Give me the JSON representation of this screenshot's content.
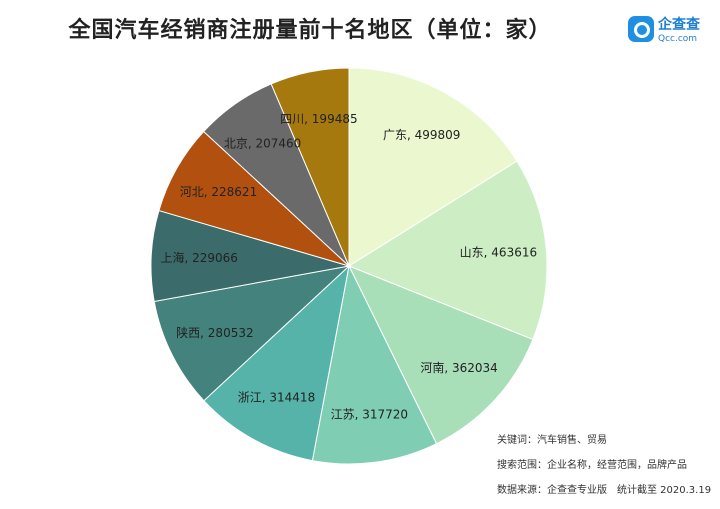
{
  "title": "全国汽车经销商注册量前十名地区（单位：家）",
  "logo": {
    "name": "企查查",
    "sub": "Qcc.com",
    "color": "#1e8fe1"
  },
  "chart_data": {
    "type": "pie",
    "title": "全国汽车经销商注册量前十名地区（单位：家）",
    "unit": "家",
    "categories": [
      "广东",
      "山东",
      "河南",
      "江苏",
      "浙江",
      "陕西",
      "上海",
      "河北",
      "北京",
      "四川"
    ],
    "values": [
      499809,
      463616,
      362034,
      317720,
      314418,
      280532,
      229066,
      228621,
      207460,
      199485
    ],
    "labels": [
      "广东, 499809",
      "山东, 463616",
      "河南, 362034",
      "江苏, 317720",
      "浙江, 314418",
      "陕西, 280532",
      "上海, 229066",
      "河北, 228621",
      "北京, 207460",
      "四川, 199485"
    ],
    "colors": [
      "#eaf7cf",
      "#cdeec5",
      "#a8dfb8",
      "#7fcdb3",
      "#55b3a9",
      "#44837d",
      "#3b6b6b",
      "#b2510f",
      "#6a6a6a",
      "#a5790e"
    ],
    "start_angle": "12 o'clock",
    "direction": "clockwise"
  },
  "footnotes": [
    "关键词：汽车销售、贸易",
    "搜索范围：企业名称，经营范围，品牌产品",
    "数据来源：企查查专业版　统计截至 2020.3.19"
  ]
}
